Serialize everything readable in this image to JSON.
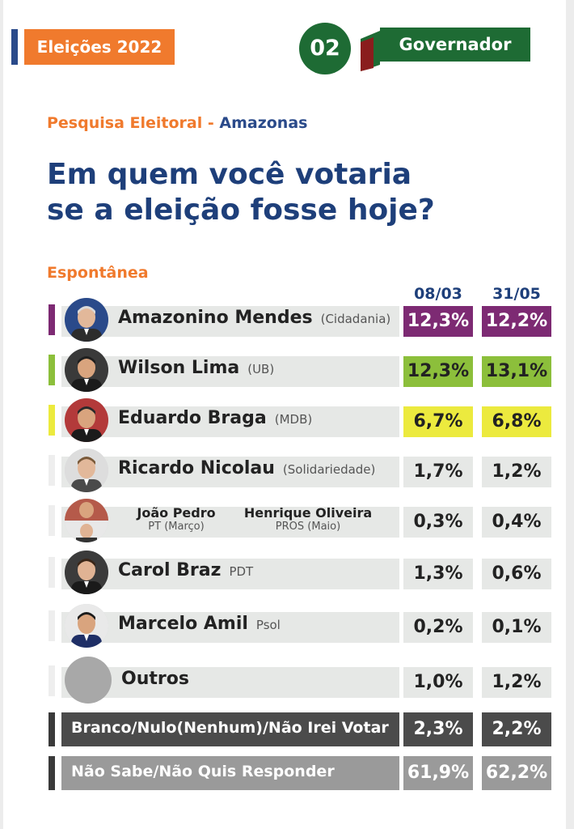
{
  "header": {
    "tag_label": "Eleições 2022",
    "number": "02",
    "section_label": "Governador",
    "subtitle_prefix": "Pesquisa Eleitoral",
    "subtitle_sep": " - ",
    "subtitle_location": "Amazonas",
    "headline_line1": "Em quem você votaria",
    "headline_line2": "se a eleição fosse hoje?",
    "poll_type": "Espontânea"
  },
  "colors": {
    "orange": "#f07a2d",
    "navy": "#1e3f7a",
    "green_dark": "#1e6b34",
    "purple": "#7d2a73",
    "lime": "#8cbf3b",
    "yellow": "#ecea3e",
    "gray_light": "#e6e8e6",
    "gray_dark": "#4b4b4b",
    "gray_mid": "#9a9a9a"
  },
  "chart_data": {
    "type": "table",
    "title": "Em quem você votaria se a eleição fosse hoje?",
    "columns": [
      "08/03",
      "31/05"
    ],
    "rows": [
      {
        "name": "Amazonino Mendes",
        "party": "(Cidadania)",
        "values": [
          "12,3%",
          "12,2%"
        ],
        "highlight": "#7d2a73"
      },
      {
        "name": "Wilson Lima",
        "party": "(UB)",
        "values": [
          "12,3%",
          "13,1%"
        ],
        "highlight": "#8cbf3b"
      },
      {
        "name": "Eduardo Braga",
        "party": "(MDB)",
        "values": [
          "6,7%",
          "6,8%"
        ],
        "highlight": "#ecea3e"
      },
      {
        "name": "Ricardo Nicolau",
        "party": "(Solidariedade)",
        "values": [
          "1,7%",
          "1,2%"
        ]
      },
      {
        "name": "João Pedro",
        "party": "PT (Março)",
        "name2": "Henrique Oliveira",
        "party2": "PROS (Maio)",
        "values": [
          "0,3%",
          "0,4%"
        ]
      },
      {
        "name": "Carol Braz",
        "party": "PDT",
        "values": [
          "1,3%",
          "0,6%"
        ]
      },
      {
        "name": "Marcelo Amil",
        "party": "Psol",
        "values": [
          "0,2%",
          "0,1%"
        ]
      },
      {
        "name": "Outros",
        "party": "",
        "values": [
          "1,0%",
          "1,2%"
        ]
      },
      {
        "name": "Branco/Nulo(Nenhum)/Não Irei Votar",
        "party": "",
        "values": [
          "2,3%",
          "2,2%"
        ]
      },
      {
        "name": "Não Sabe/Não Quis Responder",
        "party": "",
        "values": [
          "61,9%",
          "62,2%"
        ]
      }
    ]
  }
}
